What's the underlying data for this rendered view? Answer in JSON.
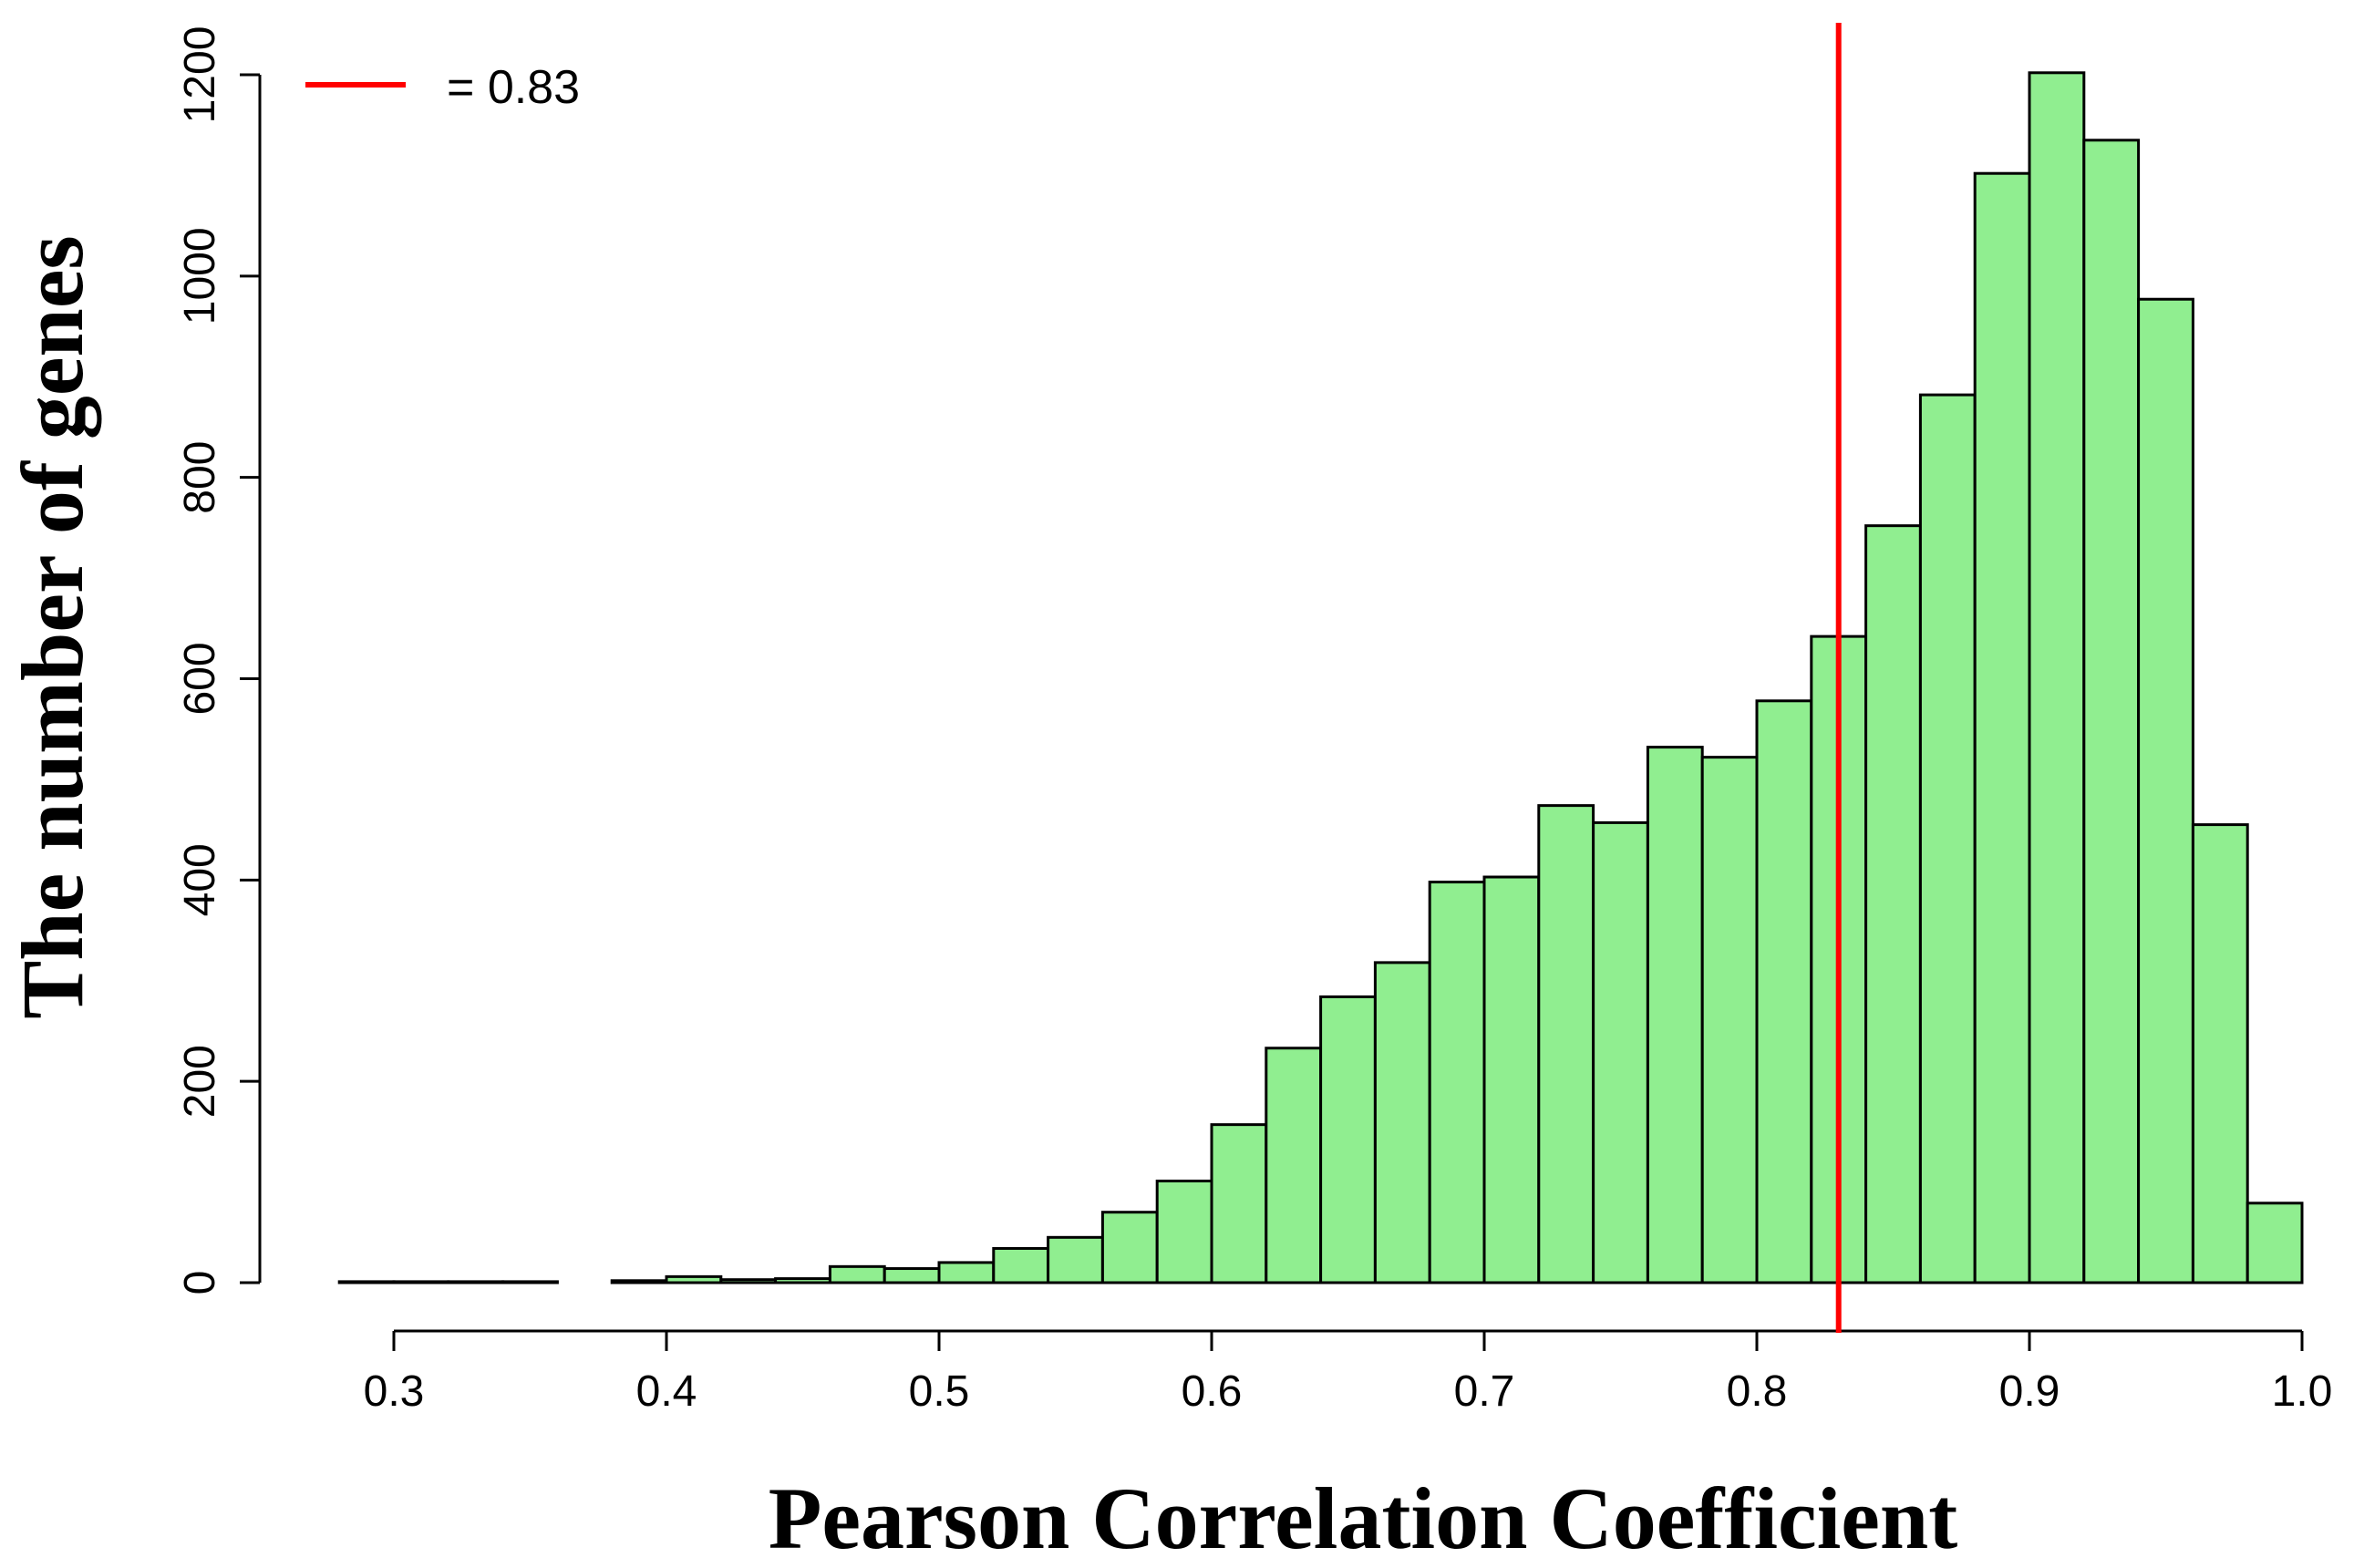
{
  "chart_data": {
    "type": "bar",
    "chart_kind": "histogram",
    "xlabel": "Pearson Correlation Coefficient",
    "ylabel": "The number of genes",
    "xlim": [
      0.3,
      1.0
    ],
    "ylim": [
      0,
      1200
    ],
    "x_ticks": [
      "0.3",
      "0.4",
      "0.5",
      "0.6",
      "0.7",
      "0.8",
      "0.9",
      "1.0"
    ],
    "y_ticks": [
      "0",
      "200",
      "400",
      "600",
      "800",
      "1000",
      "1200"
    ],
    "bin_edges": [
      0.28,
      0.3,
      0.32,
      0.34,
      0.36,
      0.38,
      0.4,
      0.42,
      0.44,
      0.46,
      0.48,
      0.5,
      0.52,
      0.54,
      0.56,
      0.58,
      0.6,
      0.62,
      0.64,
      0.66,
      0.68,
      0.7,
      0.72,
      0.74,
      0.76,
      0.78,
      0.8,
      0.82,
      0.84,
      0.86,
      0.88,
      0.9,
      0.92,
      0.94,
      0.96,
      0.98,
      1.0
    ],
    "values": [
      1,
      1,
      1,
      1,
      0,
      2,
      6,
      3,
      4,
      16,
      14,
      20,
      34,
      45,
      70,
      101,
      157,
      233,
      284,
      318,
      398,
      403,
      474,
      457,
      532,
      522,
      578,
      642,
      752,
      882,
      1102,
      1202,
      1135,
      977,
      455,
      79
    ],
    "bar_color": "#90EE90",
    "reference_line": {
      "x": 0.83,
      "color": "#FF0000"
    },
    "legend": {
      "position": "top-left",
      "label": "= 0.83",
      "color": "#FF0000"
    },
    "grid": false
  }
}
